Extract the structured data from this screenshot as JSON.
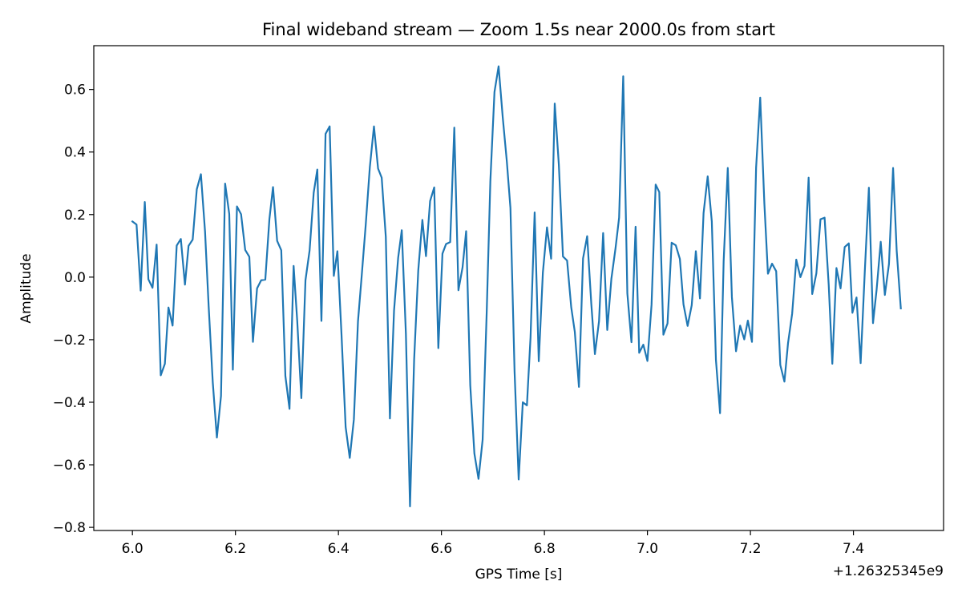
{
  "chart_data": {
    "type": "line",
    "title": "Final wideband stream — Zoom 1.5s near 2000.0s from start",
    "xlabel": "GPS Time [s]",
    "ylabel": "Amplitude",
    "x_offset_label": "+1.26325345e9",
    "xlim": [
      5.925,
      7.575
    ],
    "ylim": [
      -0.81,
      0.74
    ],
    "x_ticks": [
      {
        "value": 6.0,
        "label": "6.0"
      },
      {
        "value": 6.2,
        "label": "6.2"
      },
      {
        "value": 6.4,
        "label": "6.4"
      },
      {
        "value": 6.6,
        "label": "6.6"
      },
      {
        "value": 6.8,
        "label": "6.8"
      },
      {
        "value": 7.0,
        "label": "7.0"
      },
      {
        "value": 7.2,
        "label": "7.2"
      },
      {
        "value": 7.4,
        "label": "7.4"
      }
    ],
    "y_ticks": [
      {
        "value": 0.6,
        "label": "0.6"
      },
      {
        "value": 0.4,
        "label": "0.4"
      },
      {
        "value": 0.2,
        "label": "0.2"
      },
      {
        "value": 0.0,
        "label": "0.0"
      },
      {
        "value": -0.2,
        "label": "−0.2"
      },
      {
        "value": -0.4,
        "label": "−0.4"
      },
      {
        "value": -0.6,
        "label": "−0.6"
      },
      {
        "value": -0.8,
        "label": "−0.8"
      }
    ],
    "grid": false,
    "series": [
      {
        "name": "wideband stream",
        "color": "#1f77b4",
        "x": [
          6.0,
          6.008,
          6.016,
          6.024,
          6.031,
          6.039,
          6.047,
          6.055,
          6.063,
          6.07,
          6.078,
          6.086,
          6.094,
          6.102,
          6.109,
          6.117,
          6.125,
          6.133,
          6.141,
          6.148,
          6.156,
          6.164,
          6.172,
          6.18,
          6.188,
          6.195,
          6.203,
          6.211,
          6.219,
          6.227,
          6.234,
          6.242,
          6.25,
          6.258,
          6.266,
          6.273,
          6.281,
          6.289,
          6.297,
          6.305,
          6.313,
          6.32,
          6.328,
          6.336,
          6.344,
          6.352,
          6.359,
          6.367,
          6.375,
          6.383,
          6.391,
          6.398,
          6.406,
          6.414,
          6.422,
          6.43,
          6.438,
          6.445,
          6.453,
          6.461,
          6.469,
          6.477,
          6.484,
          6.492,
          6.5,
          6.508,
          6.516,
          6.523,
          6.531,
          6.539,
          6.547,
          6.555,
          6.563,
          6.57,
          6.578,
          6.586,
          6.594,
          6.602,
          6.609,
          6.617,
          6.625,
          6.633,
          6.641,
          6.648,
          6.656,
          6.664,
          6.672,
          6.68,
          6.688,
          6.695,
          6.703,
          6.711,
          6.719,
          6.727,
          6.734,
          6.742,
          6.75,
          6.758,
          6.766,
          6.773,
          6.781,
          6.789,
          6.797,
          6.805,
          6.813,
          6.82,
          6.828,
          6.836,
          6.844,
          6.852,
          6.859,
          6.867,
          6.875,
          6.883,
          6.891,
          6.898,
          6.906,
          6.914,
          6.922,
          6.93,
          6.938,
          6.945,
          6.953,
          6.961,
          6.969,
          6.977,
          6.984,
          6.992,
          7.0,
          7.008,
          7.016,
          7.023,
          7.031,
          7.039,
          7.047,
          7.055,
          7.063,
          7.07,
          7.078,
          7.086,
          7.094,
          7.102,
          7.109,
          7.117,
          7.125,
          7.133,
          7.141,
          7.148,
          7.156,
          7.164,
          7.172,
          7.18,
          7.188,
          7.195,
          7.203,
          7.211,
          7.219,
          7.227,
          7.234,
          7.242,
          7.25,
          7.258,
          7.266,
          7.273,
          7.281,
          7.289,
          7.297,
          7.305,
          7.313,
          7.32,
          7.328,
          7.336,
          7.344,
          7.352,
          7.359,
          7.367,
          7.375,
          7.383,
          7.391,
          7.398,
          7.406,
          7.414,
          7.422,
          7.43,
          7.438,
          7.445,
          7.453,
          7.461,
          7.469,
          7.477,
          7.484,
          7.492
        ],
        "y": [
          0.178,
          0.168,
          -0.043,
          0.24,
          -0.007,
          -0.034,
          0.104,
          -0.314,
          -0.277,
          -0.097,
          -0.155,
          0.101,
          0.122,
          -0.024,
          0.1,
          0.12,
          0.281,
          0.329,
          0.146,
          -0.092,
          -0.336,
          -0.513,
          -0.38,
          0.299,
          0.202,
          -0.296,
          0.226,
          0.201,
          0.087,
          0.065,
          -0.207,
          -0.036,
          -0.01,
          -0.008,
          0.186,
          0.288,
          0.116,
          0.086,
          -0.316,
          -0.421,
          0.036,
          -0.14,
          -0.387,
          -0.01,
          0.085,
          0.27,
          0.344,
          -0.14,
          0.458,
          0.482,
          0.004,
          0.083,
          -0.184,
          -0.479,
          -0.578,
          -0.455,
          -0.141,
          0.0,
          0.167,
          0.352,
          0.482,
          0.347,
          0.318,
          0.129,
          -0.452,
          -0.107,
          0.062,
          0.15,
          -0.181,
          -0.733,
          -0.264,
          0.021,
          0.183,
          0.067,
          0.243,
          0.287,
          -0.227,
          0.075,
          0.106,
          0.112,
          0.478,
          -0.042,
          0.031,
          0.147,
          -0.346,
          -0.564,
          -0.645,
          -0.52,
          -0.108,
          0.307,
          0.592,
          0.674,
          0.512,
          0.37,
          0.221,
          -0.301,
          -0.647,
          -0.4,
          -0.41,
          -0.193,
          0.207,
          -0.269,
          0.015,
          0.159,
          0.059,
          0.555,
          0.359,
          0.066,
          0.053,
          -0.096,
          -0.175,
          -0.351,
          0.06,
          0.131,
          -0.085,
          -0.246,
          -0.141,
          0.141,
          -0.169,
          -0.005,
          0.092,
          0.19,
          0.642,
          -0.052,
          -0.208,
          0.161,
          -0.242,
          -0.216,
          -0.268,
          -0.088,
          0.296,
          0.272,
          -0.184,
          -0.148,
          0.11,
          0.102,
          0.058,
          -0.087,
          -0.156,
          -0.09,
          0.083,
          -0.068,
          0.205,
          0.322,
          0.178,
          -0.265,
          -0.435,
          0.051,
          0.349,
          -0.064,
          -0.237,
          -0.155,
          -0.199,
          -0.139,
          -0.207,
          0.35,
          0.574,
          0.237,
          0.011,
          0.043,
          0.019,
          -0.281,
          -0.334,
          -0.211,
          -0.117,
          0.056,
          0.0,
          0.036,
          0.318,
          -0.054,
          0.012,
          0.185,
          0.19,
          -0.025,
          -0.277,
          0.029,
          -0.036,
          0.096,
          0.108,
          -0.114,
          -0.065,
          -0.275,
          0.016,
          0.286,
          -0.147,
          -0.04,
          0.113,
          -0.057,
          0.042,
          0.349,
          0.084,
          -0.1
        ]
      }
    ]
  }
}
